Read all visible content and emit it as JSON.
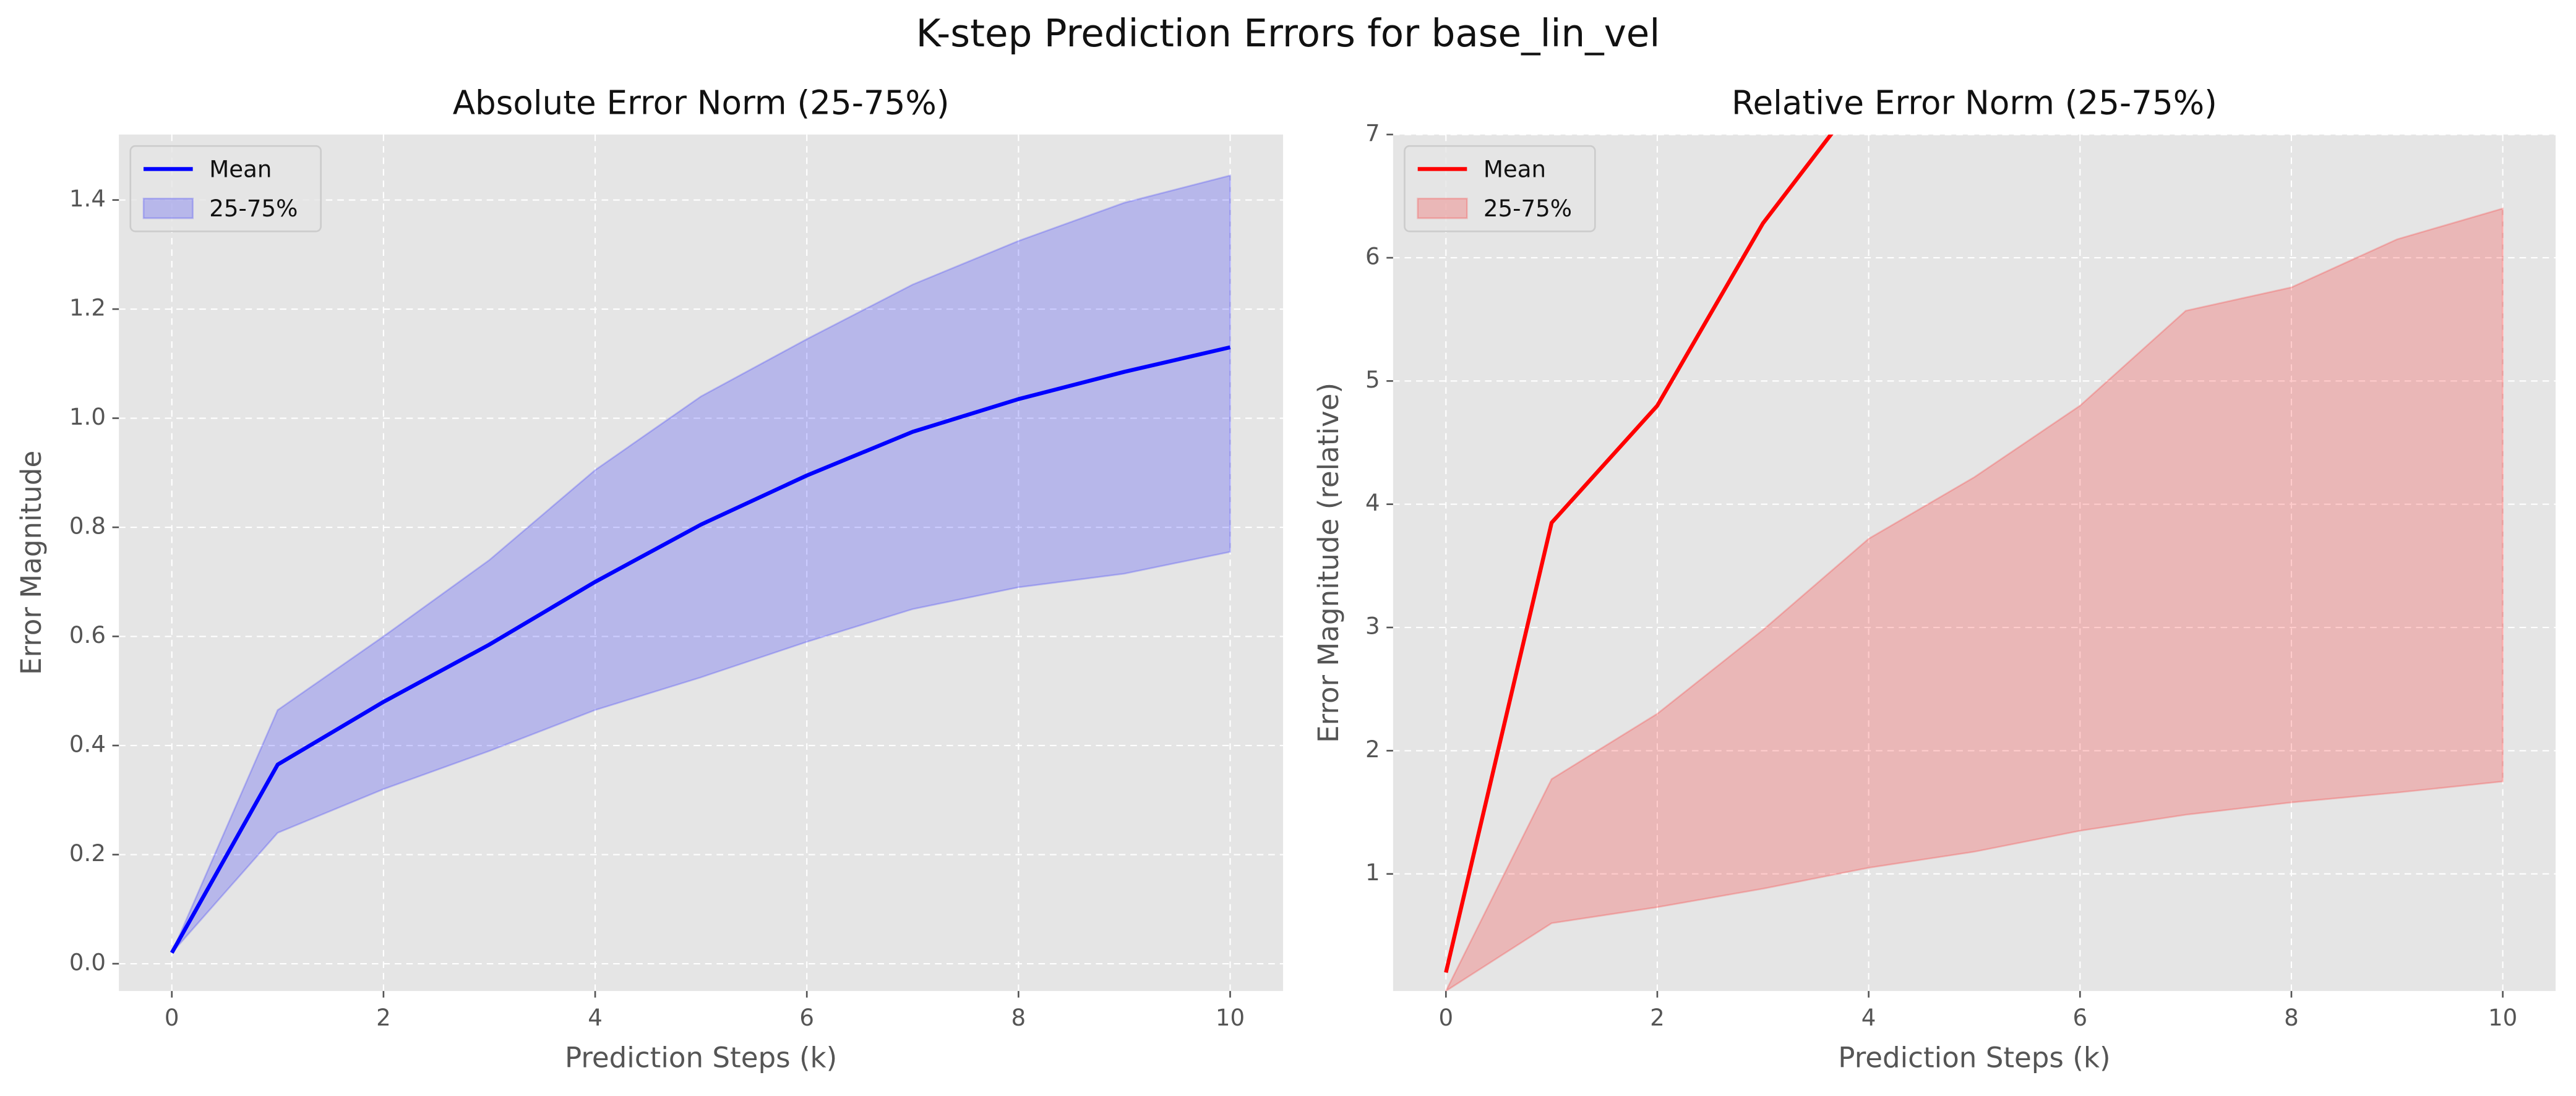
{
  "title": "K-step Prediction Errors for base_lin_vel",
  "chart_data": [
    {
      "type": "line",
      "title": "Absolute Error Norm (25-75%)",
      "x_label": "Prediction Steps (k)",
      "y_label": "Error Magnitude",
      "x": [
        0,
        1,
        2,
        3,
        4,
        5,
        6,
        7,
        8,
        9,
        10
      ],
      "series": [
        {
          "name": "Mean",
          "color": "#0000ff",
          "values": [
            0.02,
            0.365,
            0.48,
            0.585,
            0.7,
            0.805,
            0.895,
            0.975,
            1.035,
            1.085,
            1.13
          ]
        },
        {
          "name": "25-75%",
          "color": "#0000ff",
          "lower": [
            0.02,
            0.24,
            0.32,
            0.39,
            0.465,
            0.525,
            0.59,
            0.65,
            0.69,
            0.715,
            0.755
          ],
          "upper": [
            0.02,
            0.465,
            0.6,
            0.74,
            0.905,
            1.04,
            1.145,
            1.245,
            1.325,
            1.395,
            1.445
          ]
        }
      ],
      "xlim": [
        -0.5,
        10.5
      ],
      "xticks": [
        0,
        2,
        4,
        6,
        8,
        10
      ],
      "ylim": [
        -0.05,
        1.52
      ],
      "yticks": [
        {
          "value": 0,
          "label": "0.0"
        },
        0.2,
        0.4,
        0.6,
        0.8,
        {
          "value": 1,
          "label": "1.0"
        },
        1.2,
        1.4
      ],
      "grid": true,
      "legend": "upper-left"
    },
    {
      "type": "line",
      "title": "Relative Error Norm (25-75%)",
      "x_label": "Prediction Steps (k)",
      "y_label": "Error Magnitude (relative)",
      "x": [
        0,
        1,
        2,
        3,
        4,
        5,
        6,
        7,
        8,
        9,
        10
      ],
      "series": [
        {
          "name": "Mean",
          "color": "#ff0000",
          "values": [
            0.2,
            3.85,
            4.8,
            6.28,
            7.4,
            null,
            null,
            null,
            null,
            null,
            null
          ]
        },
        {
          "name": "25-75%",
          "color": "#ff0000",
          "lower": [
            0.05,
            0.6,
            0.73,
            0.88,
            1.05,
            1.18,
            1.35,
            1.48,
            1.58,
            1.66,
            1.75
          ],
          "upper": [
            0.05,
            1.77,
            2.3,
            2.98,
            3.72,
            4.22,
            4.8,
            5.57,
            5.76,
            6.15,
            6.4
          ]
        }
      ],
      "xlim": [
        -0.5,
        10.5
      ],
      "xticks": [
        0,
        2,
        4,
        6,
        8,
        10
      ],
      "ylim": [
        0.05,
        7
      ],
      "yticks": [
        1,
        2,
        3,
        4,
        5,
        6,
        7
      ],
      "grid": true,
      "legend": "upper-left"
    }
  ]
}
